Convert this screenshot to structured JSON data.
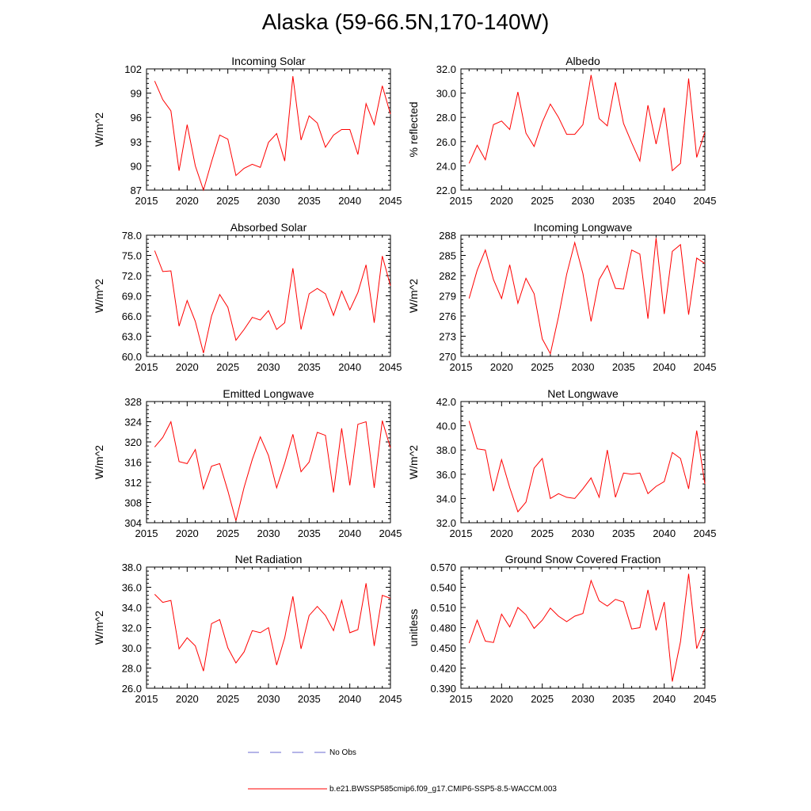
{
  "title": "Alaska (59-66.5N,170-140W)",
  "legend": [
    {
      "label": "No Obs",
      "color": "#6b6bd0",
      "style": "dashed"
    },
    {
      "label": "b.e21.BWSSP585cmip6.f09_g17.CMIP6-SSP5-8.5-WACCM.003",
      "color": "#ff0000",
      "style": "solid"
    }
  ],
  "chart_data": [
    {
      "type": "line",
      "title": "Incoming Solar",
      "ylabel": "W/m^2",
      "xlim": [
        2015,
        2045
      ],
      "xticks": [
        2015,
        2020,
        2025,
        2030,
        2035,
        2040,
        2045
      ],
      "ylim": [
        87,
        102
      ],
      "yticks": [
        "87",
        "90",
        "93",
        "96",
        "99",
        "102"
      ],
      "x": [
        2016,
        2017,
        2018,
        2019,
        2020,
        2021,
        2022,
        2023,
        2024,
        2025,
        2026,
        2027,
        2028,
        2029,
        2030,
        2031,
        2032,
        2033,
        2034,
        2035,
        2036,
        2037,
        2038,
        2039,
        2040,
        2041,
        2042,
        2043,
        2044,
        2045
      ],
      "series": [
        {
          "values": [
            100.5,
            98.2,
            96.8,
            89.4,
            95.1,
            90.0,
            87.0,
            90.5,
            93.8,
            93.3,
            88.8,
            89.7,
            90.2,
            89.8,
            92.9,
            94.0,
            90.6,
            101.1,
            93.2,
            96.2,
            95.3,
            92.3,
            93.8,
            94.5,
            94.5,
            91.4,
            97.7,
            95.1,
            99.9,
            96.4
          ],
          "color": "#ff0000"
        }
      ]
    },
    {
      "type": "line",
      "title": "Albedo",
      "ylabel": "% reflected",
      "xlim": [
        2015,
        2045
      ],
      "xticks": [
        2015,
        2020,
        2025,
        2030,
        2035,
        2040,
        2045
      ],
      "ylim": [
        22,
        32
      ],
      "yticks": [
        "22.0",
        "24.0",
        "26.0",
        "28.0",
        "30.0",
        "32.0"
      ],
      "x": [
        2016,
        2017,
        2018,
        2019,
        2020,
        2021,
        2022,
        2023,
        2024,
        2025,
        2026,
        2027,
        2028,
        2029,
        2030,
        2031,
        2032,
        2033,
        2034,
        2035,
        2036,
        2037,
        2038,
        2039,
        2040,
        2041,
        2042,
        2043,
        2044,
        2045
      ],
      "series": [
        {
          "values": [
            24.2,
            25.7,
            24.5,
            27.4,
            27.7,
            27.0,
            30.1,
            26.7,
            25.6,
            27.6,
            29.1,
            28.0,
            26.6,
            26.6,
            27.4,
            31.5,
            27.9,
            27.3,
            30.9,
            27.5,
            25.9,
            24.4,
            29.0,
            25.8,
            28.8,
            23.6,
            24.2,
            31.2,
            24.7,
            26.8
          ],
          "color": "#ff0000"
        }
      ]
    },
    {
      "type": "line",
      "title": "Absorbed Solar",
      "ylabel": "W/m^2",
      "xlim": [
        2015,
        2045
      ],
      "xticks": [
        2015,
        2020,
        2025,
        2030,
        2035,
        2040,
        2045
      ],
      "ylim": [
        60,
        78
      ],
      "yticks": [
        "60.0",
        "63.0",
        "66.0",
        "69.0",
        "72.0",
        "75.0",
        "78.0"
      ],
      "x": [
        2016,
        2017,
        2018,
        2019,
        2020,
        2021,
        2022,
        2023,
        2024,
        2025,
        2026,
        2027,
        2028,
        2029,
        2030,
        2031,
        2032,
        2033,
        2034,
        2035,
        2036,
        2037,
        2038,
        2039,
        2040,
        2041,
        2042,
        2043,
        2044,
        2045
      ],
      "series": [
        {
          "values": [
            75.7,
            72.6,
            72.7,
            64.5,
            68.3,
            65.2,
            60.5,
            66.0,
            69.2,
            67.3,
            62.4,
            64.0,
            65.8,
            65.4,
            66.8,
            64.0,
            65.0,
            73.1,
            64.0,
            69.3,
            70.1,
            69.3,
            66.1,
            69.7,
            66.9,
            69.5,
            73.6,
            65.0,
            74.9,
            70.5
          ],
          "color": "#ff0000"
        }
      ]
    },
    {
      "type": "line",
      "title": "Incoming Longwave",
      "ylabel": "W/m^2",
      "xlim": [
        2015,
        2045
      ],
      "xticks": [
        2015,
        2020,
        2025,
        2030,
        2035,
        2040,
        2045
      ],
      "ylim": [
        270,
        288
      ],
      "yticks": [
        "270",
        "273",
        "276",
        "279",
        "282",
        "285",
        "288"
      ],
      "x": [
        2016,
        2017,
        2018,
        2019,
        2020,
        2021,
        2022,
        2023,
        2024,
        2025,
        2026,
        2027,
        2028,
        2029,
        2030,
        2031,
        2032,
        2033,
        2034,
        2035,
        2036,
        2037,
        2038,
        2039,
        2040,
        2041,
        2042,
        2043,
        2044,
        2045
      ],
      "series": [
        {
          "values": [
            278.6,
            282.8,
            285.8,
            281.4,
            278.6,
            283.6,
            277.9,
            281.6,
            279.3,
            272.6,
            270.4,
            275.9,
            282.2,
            286.9,
            282.3,
            275.2,
            281.4,
            283.5,
            280.1,
            280.0,
            285.8,
            285.2,
            275.6,
            287.6,
            276.3,
            285.6,
            286.6,
            276.2,
            284.6,
            283.8
          ],
          "color": "#ff0000"
        }
      ]
    },
    {
      "type": "line",
      "title": "Emitted Longwave",
      "ylabel": "W/m^2",
      "xlim": [
        2015,
        2045
      ],
      "xticks": [
        2015,
        2020,
        2025,
        2030,
        2035,
        2040,
        2045
      ],
      "ylim": [
        304,
        328
      ],
      "yticks": [
        "304",
        "308",
        "312",
        "316",
        "320",
        "324",
        "328"
      ],
      "x": [
        2016,
        2017,
        2018,
        2019,
        2020,
        2021,
        2022,
        2023,
        2024,
        2025,
        2026,
        2027,
        2028,
        2029,
        2030,
        2031,
        2032,
        2033,
        2034,
        2035,
        2036,
        2037,
        2038,
        2039,
        2040,
        2041,
        2042,
        2043,
        2044,
        2045
      ],
      "series": [
        {
          "values": [
            319.0,
            320.9,
            324.0,
            316.1,
            315.7,
            318.5,
            310.7,
            315.2,
            315.7,
            310.3,
            304.4,
            311.0,
            316.5,
            321.0,
            317.3,
            310.9,
            315.8,
            321.5,
            314.1,
            316.0,
            321.9,
            321.3,
            310.0,
            322.7,
            311.4,
            323.5,
            324.0,
            310.9,
            324.2,
            318.8
          ],
          "color": "#ff0000"
        }
      ]
    },
    {
      "type": "line",
      "title": "Net Longwave",
      "ylabel": "W/m^2",
      "xlim": [
        2015,
        2045
      ],
      "xticks": [
        2015,
        2020,
        2025,
        2030,
        2035,
        2040,
        2045
      ],
      "ylim": [
        32,
        42
      ],
      "yticks": [
        "32.0",
        "34.0",
        "36.0",
        "38.0",
        "40.0",
        "42.0"
      ],
      "x": [
        2016,
        2017,
        2018,
        2019,
        2020,
        2021,
        2022,
        2023,
        2024,
        2025,
        2026,
        2027,
        2028,
        2029,
        2030,
        2031,
        2032,
        2033,
        2034,
        2035,
        2036,
        2037,
        2038,
        2039,
        2040,
        2041,
        2042,
        2043,
        2044,
        2045
      ],
      "series": [
        {
          "values": [
            40.4,
            38.1,
            38.0,
            34.6,
            37.2,
            34.9,
            32.9,
            33.7,
            36.5,
            37.3,
            34.0,
            34.4,
            34.1,
            34.0,
            34.8,
            35.7,
            34.1,
            38.0,
            34.1,
            36.1,
            36.0,
            36.1,
            34.4,
            35.0,
            35.4,
            37.8,
            37.3,
            34.8,
            39.6,
            35.2
          ],
          "color": "#ff0000"
        }
      ]
    },
    {
      "type": "line",
      "title": "Net Radiation",
      "ylabel": "W/m^2",
      "xlim": [
        2015,
        2045
      ],
      "xticks": [
        2015,
        2020,
        2025,
        2030,
        2035,
        2040,
        2045
      ],
      "ylim": [
        26,
        38
      ],
      "yticks": [
        "26.0",
        "28.0",
        "30.0",
        "32.0",
        "34.0",
        "36.0",
        "38.0"
      ],
      "x": [
        2016,
        2017,
        2018,
        2019,
        2020,
        2021,
        2022,
        2023,
        2024,
        2025,
        2026,
        2027,
        2028,
        2029,
        2030,
        2031,
        2032,
        2033,
        2034,
        2035,
        2036,
        2037,
        2038,
        2039,
        2040,
        2041,
        2042,
        2043,
        2044,
        2045
      ],
      "series": [
        {
          "values": [
            35.3,
            34.5,
            34.7,
            29.9,
            31.0,
            30.2,
            27.7,
            32.4,
            32.8,
            30.0,
            28.5,
            29.6,
            31.7,
            31.5,
            32.0,
            28.3,
            31.0,
            35.1,
            29.9,
            33.2,
            34.1,
            33.2,
            31.7,
            34.7,
            31.5,
            31.8,
            36.4,
            30.2,
            35.2,
            34.9
          ],
          "color": "#ff0000"
        }
      ]
    },
    {
      "type": "line",
      "title": "Ground Snow Covered Fraction",
      "ylabel": "unitless",
      "xlim": [
        2015,
        2045
      ],
      "xticks": [
        2015,
        2020,
        2025,
        2030,
        2035,
        2040,
        2045
      ],
      "ylim": [
        0.39,
        0.57
      ],
      "yticks": [
        "0.390",
        "0.420",
        "0.450",
        "0.480",
        "0.510",
        "0.540",
        "0.570"
      ],
      "x": [
        2016,
        2017,
        2018,
        2019,
        2020,
        2021,
        2022,
        2023,
        2024,
        2025,
        2026,
        2027,
        2028,
        2029,
        2030,
        2031,
        2032,
        2033,
        2034,
        2035,
        2036,
        2037,
        2038,
        2039,
        2040,
        2041,
        2042,
        2043,
        2044,
        2045
      ],
      "series": [
        {
          "values": [
            0.457,
            0.491,
            0.46,
            0.458,
            0.5,
            0.481,
            0.51,
            0.499,
            0.479,
            0.491,
            0.509,
            0.497,
            0.489,
            0.497,
            0.501,
            0.55,
            0.52,
            0.512,
            0.522,
            0.518,
            0.478,
            0.48,
            0.536,
            0.476,
            0.518,
            0.4,
            0.459,
            0.56,
            0.449,
            0.479
          ],
          "color": "#ff0000"
        }
      ]
    }
  ]
}
